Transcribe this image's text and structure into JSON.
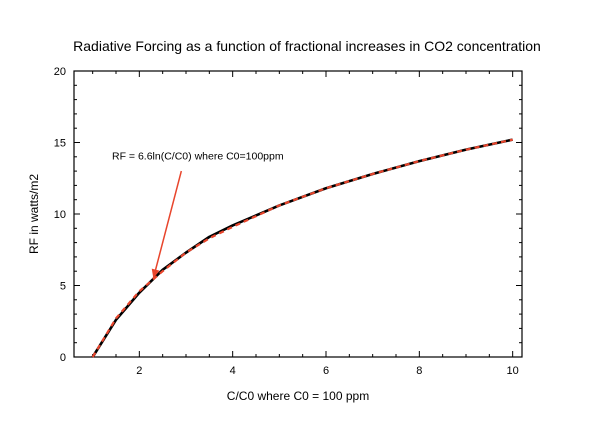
{
  "chart_data": {
    "type": "line",
    "title": "Radiative Forcing as a function of fractional increases in CO2 concentration",
    "xlabel": "C/C0  where C0 = 100 ppm",
    "ylabel": "RF in watts/m2",
    "xlim": [
      0.6,
      10.2
    ],
    "ylim": [
      0,
      20
    ],
    "x_ticks": [
      2,
      4,
      6,
      8,
      10
    ],
    "y_ticks": [
      0,
      5,
      10,
      15,
      20
    ],
    "grid": false,
    "legend": "none",
    "series": [
      {
        "name": "",
        "style": "solid",
        "color": "#000000",
        "x": [
          1,
          1.5,
          2,
          2.5,
          3,
          3.5,
          4,
          5,
          6,
          7,
          8,
          9,
          10
        ],
        "y": [
          0,
          2.6,
          4.5,
          6.1,
          7.3,
          8.4,
          9.2,
          10.6,
          11.8,
          12.8,
          13.7,
          14.5,
          15.2
        ]
      },
      {
        "name": "",
        "style": "dashed",
        "color": "#e8452c",
        "x": [
          1,
          1.5,
          2,
          2.5,
          3,
          3.5,
          4,
          5,
          6,
          7,
          8,
          9,
          10
        ],
        "y": [
          0,
          2.7,
          4.6,
          6.0,
          7.3,
          8.3,
          9.1,
          10.6,
          11.8,
          12.8,
          13.7,
          14.5,
          15.2
        ]
      }
    ],
    "annotations": [
      {
        "text": "RF = 6.6ln(C/C0)  where C0=100ppm",
        "arrow_to": [
          2.3,
          5.5
        ],
        "arrow_from": [
          2.9,
          13.0
        ],
        "arrow_color": "#e8452c"
      }
    ]
  }
}
